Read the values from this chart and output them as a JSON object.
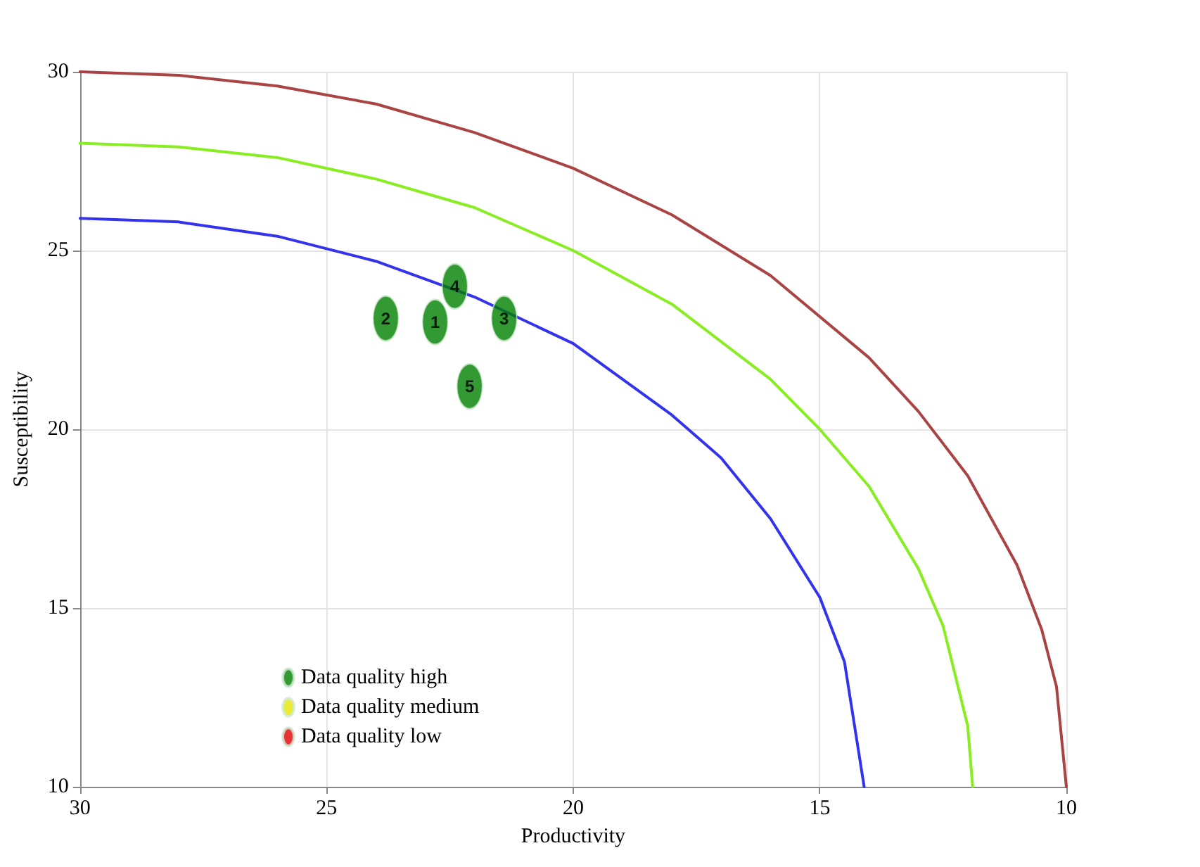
{
  "chart_data": {
    "type": "scatter",
    "xlabel": "Productivity",
    "ylabel": "Susceptibility",
    "xlim": [
      30,
      10
    ],
    "ylim": [
      10,
      30
    ],
    "xticks": [
      30,
      25,
      20,
      15,
      10
    ],
    "yticks": [
      10,
      15,
      20,
      25,
      30
    ],
    "grid": true,
    "legend": "bottom left",
    "annotations": [
      {
        "text": "1",
        "x": 22.8,
        "y": 23.0
      },
      {
        "text": "2",
        "x": 23.8,
        "y": 23.1
      },
      {
        "text": "3",
        "x": 21.4,
        "y": 23.1
      },
      {
        "text": "4",
        "x": 22.4,
        "y": 24.0
      },
      {
        "text": "5",
        "x": 22.1,
        "y": 21.2
      }
    ],
    "series": [
      {
        "name": "Data quality high",
        "color": "#008000",
        "marker": "circle",
        "x": [
          22.8,
          23.8,
          21.4,
          22.4,
          22.1
        ],
        "values": [
          23.0,
          23.1,
          23.1,
          24.0,
          21.2
        ]
      },
      {
        "name": "Data quality medium",
        "color": "#e6e600",
        "marker": "circle"
      },
      {
        "name": "Data quality low",
        "color": "#e00000",
        "marker": "circle"
      },
      {
        "type": "line",
        "color": "#3333ee",
        "marker": "none",
        "x": [
          30,
          28,
          26,
          24,
          22,
          20,
          18,
          17,
          16,
          15,
          14.5,
          14.1
        ],
        "values": [
          25.9,
          25.8,
          25.4,
          24.7,
          23.7,
          22.4,
          20.4,
          19.2,
          17.5,
          15.3,
          13.5,
          10
        ]
      },
      {
        "type": "line",
        "color": "#88ee22",
        "marker": "none",
        "x": [
          30,
          28,
          26,
          24,
          22,
          20,
          18,
          16,
          15,
          14,
          13,
          12.5,
          12,
          11.9
        ],
        "values": [
          28.0,
          27.9,
          27.6,
          27.0,
          26.2,
          25.0,
          23.5,
          21.4,
          20.0,
          18.4,
          16.1,
          14.5,
          11.7,
          10
        ]
      },
      {
        "type": "line",
        "color": "#aa4444",
        "marker": "none",
        "x": [
          30,
          28,
          26,
          24,
          22,
          20,
          18,
          16,
          14,
          13,
          12,
          11,
          10.5,
          10.2,
          10
        ],
        "values": [
          30.0,
          29.9,
          29.6,
          29.1,
          28.3,
          27.3,
          26.0,
          24.3,
          22.0,
          20.5,
          18.7,
          16.2,
          14.4,
          12.8,
          10
        ]
      }
    ]
  }
}
